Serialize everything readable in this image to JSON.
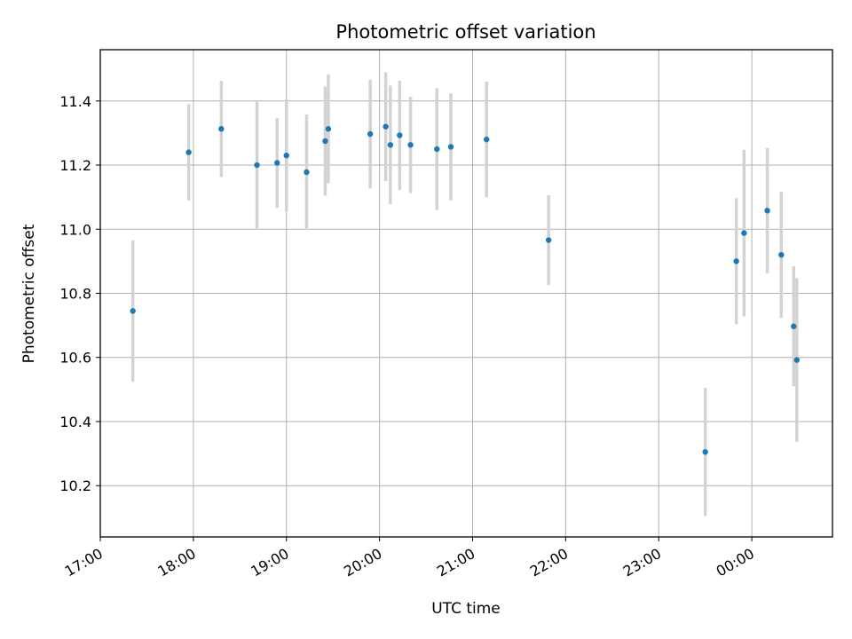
{
  "chart_data": {
    "type": "scatter",
    "title": "Photometric offset variation",
    "xlabel": "UTC time",
    "ylabel": "Photometric offset",
    "grid": true,
    "x_ticks": [
      "17:00",
      "18:00",
      "19:00",
      "20:00",
      "21:00",
      "22:00",
      "23:00",
      "00:00"
    ],
    "x_range": [
      "17:00",
      "00:52"
    ],
    "y_ticks": [
      "10.2",
      "10.4",
      "10.6",
      "10.8",
      "11.0",
      "11.2",
      "11.4"
    ],
    "ylim": [
      10.04,
      11.56
    ],
    "colors": {
      "point": "#1f77b4",
      "errorbar": "#d3d3d3",
      "grid": "#b0b0b0"
    },
    "points": [
      {
        "x": "17:21",
        "y": 10.745,
        "err": 0.22
      },
      {
        "x": "17:57",
        "y": 11.24,
        "err": 0.15
      },
      {
        "x": "18:18",
        "y": 11.313,
        "err": 0.15
      },
      {
        "x": "18:41",
        "y": 11.2,
        "err": 0.2
      },
      {
        "x": "18:54",
        "y": 11.207,
        "err": 0.14
      },
      {
        "x": "19:00",
        "y": 11.23,
        "err": 0.175
      },
      {
        "x": "19:13",
        "y": 11.178,
        "err": 0.18
      },
      {
        "x": "19:25",
        "y": 11.275,
        "err": 0.17
      },
      {
        "x": "19:27",
        "y": 11.313,
        "err": 0.17
      },
      {
        "x": "19:54",
        "y": 11.297,
        "err": 0.17
      },
      {
        "x": "20:04",
        "y": 11.32,
        "err": 0.17
      },
      {
        "x": "20:07",
        "y": 11.263,
        "err": 0.185
      },
      {
        "x": "20:13",
        "y": 11.293,
        "err": 0.17
      },
      {
        "x": "20:20",
        "y": 11.263,
        "err": 0.15
      },
      {
        "x": "20:37",
        "y": 11.25,
        "err": 0.19
      },
      {
        "x": "20:46",
        "y": 11.257,
        "err": 0.167
      },
      {
        "x": "21:09",
        "y": 11.28,
        "err": 0.18
      },
      {
        "x": "21:49",
        "y": 10.966,
        "err": 0.14
      },
      {
        "x": "23:30",
        "y": 10.305,
        "err": 0.2
      },
      {
        "x": "23:50",
        "y": 10.9,
        "err": 0.197
      },
      {
        "x": "23:55",
        "y": 10.988,
        "err": 0.26
      },
      {
        "x": "00:10",
        "y": 11.058,
        "err": 0.195
      },
      {
        "x": "00:19",
        "y": 10.92,
        "err": 0.197
      },
      {
        "x": "00:27",
        "y": 10.697,
        "err": 0.187
      },
      {
        "x": "00:29",
        "y": 10.592,
        "err": 0.255
      }
    ]
  }
}
